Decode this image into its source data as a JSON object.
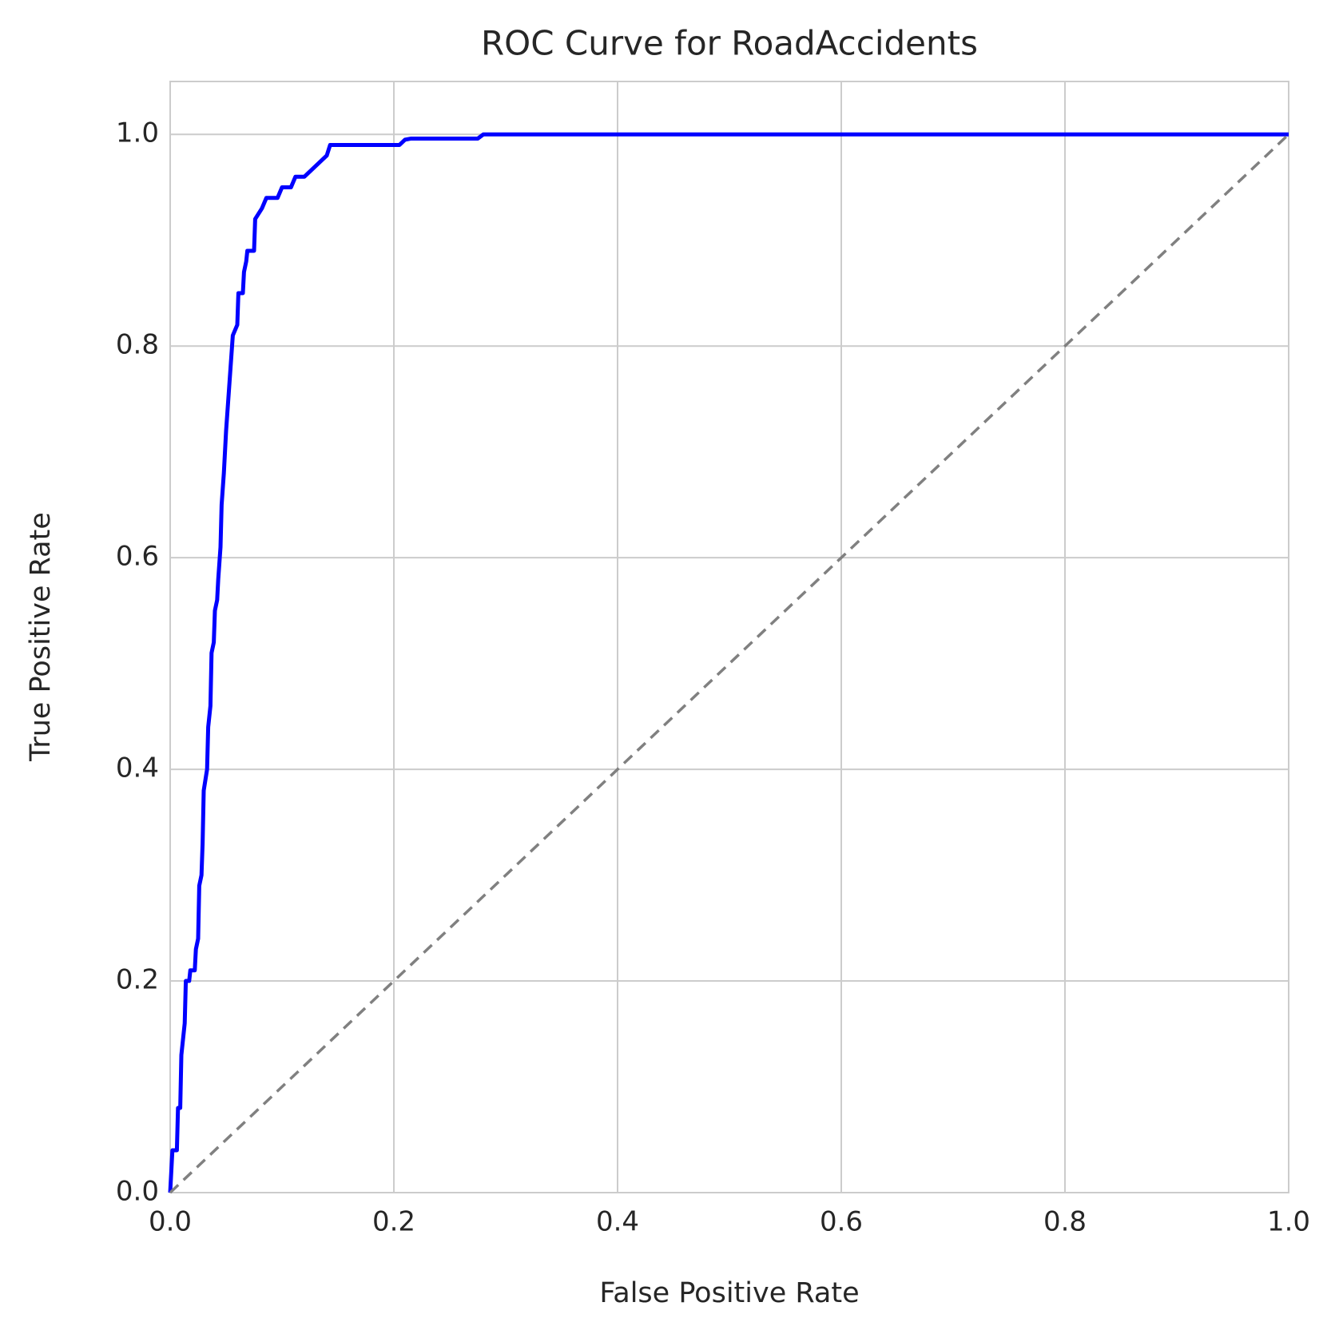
{
  "chart_data": {
    "type": "line",
    "title": "ROC Curve for RoadAccidents",
    "xlabel": "False Positive Rate",
    "ylabel": "True Positive Rate",
    "xlim": [
      0,
      1
    ],
    "ylim": [
      0,
      1.05
    ],
    "xticks": [
      {
        "value": 0,
        "label": "0.0"
      },
      0.2,
      0.4,
      0.6,
      0.8,
      {
        "value": 1,
        "label": "1.0"
      }
    ],
    "yticks": [
      {
        "value": 0,
        "label": "0.0"
      },
      0.2,
      0.4,
      0.6,
      0.8,
      {
        "value": 1,
        "label": "1.0"
      }
    ],
    "grid": true,
    "series": [
      {
        "color": "#0000ff",
        "dash": false,
        "x": [
          0,
          0.002,
          0.006,
          0.007,
          0.009,
          0.01,
          0.013,
          0.014,
          0.017,
          0.018,
          0.022,
          0.023,
          0.025,
          0.026,
          0.028,
          0.029,
          0.03,
          0.033,
          0.034,
          0.036,
          0.037,
          0.039,
          0.04,
          0.042,
          0.043,
          0.045,
          0.046,
          0.048,
          0.05,
          0.052,
          0.054,
          0.056,
          0.06,
          0.061,
          0.065,
          0.066,
          0.068,
          0.069,
          0.075,
          0.076,
          0.082,
          0.086,
          0.096,
          0.1,
          0.108,
          0.112,
          0.12,
          0.13,
          0.14,
          0.143,
          0.16,
          0.188,
          0.205,
          0.21,
          0.215,
          0.275,
          0.28,
          1
        ],
        "values": [
          0,
          0.04,
          0.04,
          0.08,
          0.08,
          0.13,
          0.16,
          0.2,
          0.2,
          0.21,
          0.21,
          0.23,
          0.24,
          0.29,
          0.3,
          0.33,
          0.38,
          0.4,
          0.44,
          0.46,
          0.51,
          0.52,
          0.55,
          0.56,
          0.58,
          0.61,
          0.65,
          0.68,
          0.72,
          0.75,
          0.78,
          0.81,
          0.82,
          0.85,
          0.85,
          0.87,
          0.88,
          0.89,
          0.89,
          0.92,
          0.93,
          0.94,
          0.94,
          0.95,
          0.95,
          0.96,
          0.96,
          0.97,
          0.98,
          0.99,
          0.99,
          0.99,
          0.99,
          0.995,
          0.996,
          0.996,
          1,
          1
        ]
      },
      {
        "color": "#808080",
        "dash": true,
        "x": [
          0,
          1
        ],
        "values": [
          0,
          1
        ]
      }
    ]
  }
}
